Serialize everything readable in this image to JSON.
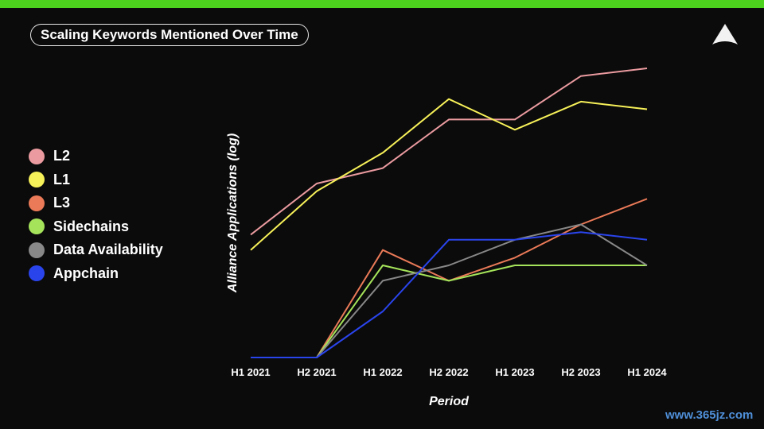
{
  "header": {
    "title": "Scaling Keywords Mentioned Over Time",
    "accent_color": "#4cd21d",
    "logo_icon": "triangle-logo-icon"
  },
  "watermark": {
    "text": "www.365jz.com"
  },
  "chart_data": {
    "type": "line",
    "title": "Scaling Keywords Mentioned Over Time",
    "xlabel": "Period",
    "ylabel": "Alliance Applications (log)",
    "y_scale": "log (unlabeled)",
    "ylim": [
      0,
      10
    ],
    "grid": false,
    "legend": "left",
    "categories": [
      "H1 2021",
      "H2 2021",
      "H1 2022",
      "H2 2022",
      "H1 2023",
      "H2 2023",
      "H1 2024"
    ],
    "series": [
      {
        "name": "L2",
        "color": "#eb9ba0",
        "values": [
          4.8,
          6.8,
          7.4,
          9.3,
          9.3,
          11.0,
          11.3
        ]
      },
      {
        "name": "L1",
        "color": "#f7f159",
        "values": [
          4.2,
          6.5,
          8.0,
          10.1,
          8.9,
          10.0,
          9.7
        ]
      },
      {
        "name": "L3",
        "color": "#ea7a58",
        "values": [
          0.0,
          0.0,
          4.2,
          3.0,
          3.9,
          5.2,
          6.2
        ]
      },
      {
        "name": "Sidechains",
        "color": "#a5e35a",
        "values": [
          0.0,
          0.0,
          3.6,
          3.0,
          3.6,
          3.6,
          3.6
        ]
      },
      {
        "name": "Data Availability",
        "color": "#888888",
        "values": [
          0.0,
          0.0,
          3.0,
          3.6,
          4.6,
          5.2,
          3.6
        ]
      },
      {
        "name": "Appchain",
        "color": "#2a44ec",
        "values": [
          0.0,
          0.0,
          1.8,
          4.6,
          4.6,
          4.9,
          4.6
        ]
      }
    ]
  }
}
